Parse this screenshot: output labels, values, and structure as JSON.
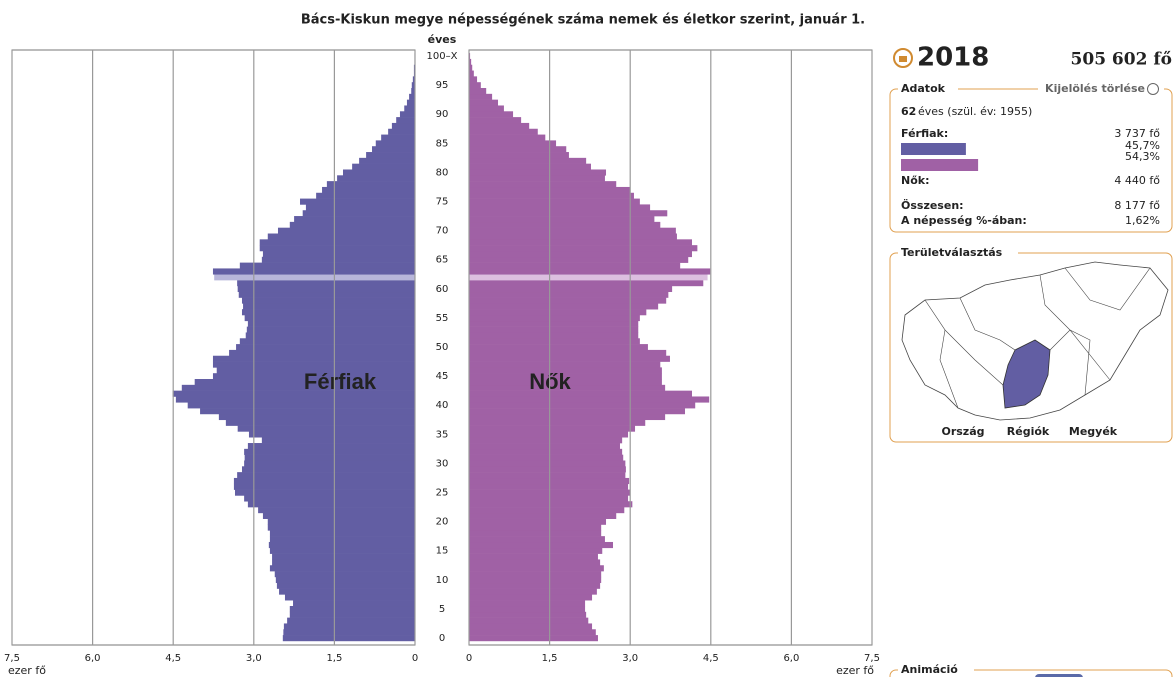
{
  "chart_data": {
    "type": "pyramid",
    "title": "Bács-Kiskun megye népességének száma nemek és életkor szerint, január 1.",
    "y_label": "éves",
    "x_label": "ezer fő",
    "categories": [
      "0",
      null,
      null,
      null,
      null,
      "5",
      null,
      null,
      null,
      null,
      "10",
      null,
      null,
      null,
      null,
      "15",
      null,
      null,
      null,
      null,
      "20",
      null,
      null,
      null,
      null,
      "25",
      null,
      null,
      null,
      null,
      "30",
      null,
      null,
      null,
      null,
      "35",
      null,
      null,
      null,
      null,
      "40",
      null,
      null,
      null,
      null,
      "45",
      null,
      null,
      null,
      null,
      "50",
      null,
      null,
      null,
      null,
      "55",
      null,
      null,
      null,
      null,
      "60",
      null,
      null,
      null,
      null,
      "65",
      null,
      null,
      null,
      null,
      "70",
      null,
      null,
      null,
      null,
      "75",
      null,
      null,
      null,
      null,
      "80",
      null,
      null,
      null,
      null,
      "85",
      null,
      null,
      null,
      null,
      "90",
      null,
      null,
      null,
      null,
      "95",
      null,
      null,
      null,
      null,
      "100–X"
    ],
    "series": [
      {
        "name": "Férfiak",
        "color": "#625ea3",
        "highlight_color": "#b8b6da",
        "values": [
          2.46,
          2.45,
          2.44,
          2.38,
          2.33,
          2.33,
          2.27,
          2.42,
          2.53,
          2.57,
          2.59,
          2.61,
          2.7,
          2.66,
          2.66,
          2.7,
          2.72,
          2.7,
          2.7,
          2.74,
          2.74,
          2.83,
          2.92,
          3.11,
          3.18,
          3.35,
          3.37,
          3.37,
          3.31,
          3.22,
          3.18,
          3.17,
          3.18,
          3.11,
          2.85,
          3.09,
          3.3,
          3.52,
          3.65,
          4.0,
          4.23,
          4.45,
          4.51,
          4.34,
          4.1,
          3.76,
          3.69,
          3.76,
          3.76,
          3.46,
          3.33,
          3.26,
          3.15,
          3.13,
          3.11,
          3.17,
          3.22,
          3.2,
          3.22,
          3.28,
          3.3,
          3.31,
          3.737,
          3.76,
          3.26,
          2.85,
          2.83,
          2.89,
          2.89,
          2.74,
          2.55,
          2.33,
          2.25,
          2.09,
          2.03,
          2.14,
          1.84,
          1.73,
          1.64,
          1.45,
          1.34,
          1.17,
          1.04,
          0.91,
          0.8,
          0.73,
          0.63,
          0.5,
          0.43,
          0.35,
          0.28,
          0.2,
          0.15,
          0.11,
          0.07,
          0.06,
          0.04,
          0.02,
          0.02,
          0.01,
          0.01
        ]
      },
      {
        "name": "Nők",
        "color": "#a061a5",
        "highlight_color": "#dcbfe0",
        "values": [
          2.4,
          2.36,
          2.29,
          2.22,
          2.18,
          2.16,
          2.16,
          2.29,
          2.38,
          2.44,
          2.46,
          2.46,
          2.51,
          2.44,
          2.4,
          2.48,
          2.68,
          2.53,
          2.46,
          2.46,
          2.55,
          2.74,
          2.89,
          3.04,
          2.96,
          3.0,
          2.96,
          2.98,
          2.91,
          2.92,
          2.91,
          2.87,
          2.85,
          2.81,
          2.85,
          2.96,
          3.09,
          3.28,
          3.65,
          4.02,
          4.21,
          4.47,
          4.15,
          3.65,
          3.59,
          3.59,
          3.59,
          3.56,
          3.74,
          3.67,
          3.33,
          3.18,
          3.15,
          3.15,
          3.15,
          3.18,
          3.3,
          3.52,
          3.67,
          3.71,
          3.78,
          4.36,
          4.44,
          4.49,
          3.93,
          4.08,
          4.15,
          4.25,
          4.15,
          3.87,
          3.85,
          3.56,
          3.45,
          3.69,
          3.37,
          3.18,
          3.07,
          3.0,
          2.74,
          2.53,
          2.55,
          2.27,
          2.18,
          1.86,
          1.81,
          1.62,
          1.42,
          1.28,
          1.12,
          0.97,
          0.82,
          0.65,
          0.54,
          0.43,
          0.32,
          0.22,
          0.15,
          0.09,
          0.06,
          0.04,
          0.02
        ]
      }
    ],
    "xlim": [
      0,
      7.5
    ],
    "xticks": [
      0,
      {
        "value": 1.5,
        "label": "1,5"
      },
      {
        "value": 3,
        "label": "3,0"
      },
      {
        "value": 4.5,
        "label": "4,5"
      },
      {
        "value": 6,
        "label": "6,0"
      },
      {
        "value": 7.5,
        "label": "7,5"
      }
    ],
    "grid": true,
    "highlight_index": 62
  },
  "panel": {
    "year": "2018",
    "population": "505 602 fő",
    "data_title": "Adatok",
    "clear": "Kijelölés törlése",
    "age": "62",
    "age_text": "éves (szül. év: 1955)",
    "male_label": "Férfiak:",
    "male_count": "3 737 fő",
    "male_share": 45.7,
    "male_share_label": "45,7%",
    "female_share": 54.3,
    "female_share_label": "54,3%",
    "female_label": "Nők:",
    "female_count": "4 440 fő",
    "total_label": "Összesen:",
    "total": "8 177 fő",
    "pct_label": "A népesség %-ában:",
    "pct": "1,62%",
    "area_title": "Területválasztás",
    "area_tabs": [
      "Ország",
      "Régiók",
      "Megyék"
    ],
    "animation_title": "Animáció"
  }
}
